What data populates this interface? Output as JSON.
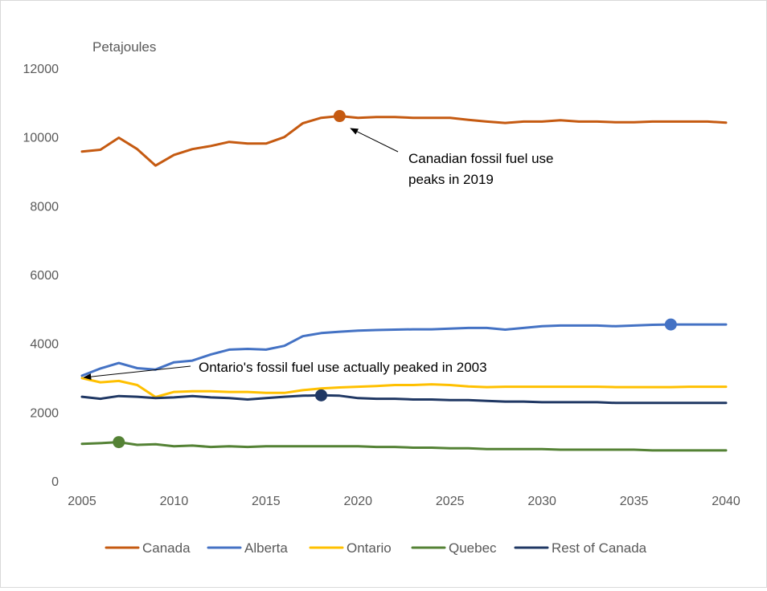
{
  "chart_data": {
    "type": "line",
    "title": "",
    "ylabel": "Petajoules",
    "xlabel": "",
    "ylim": [
      0,
      12000
    ],
    "xlim": [
      2005,
      2040
    ],
    "y_ticks": [
      0,
      2000,
      4000,
      6000,
      8000,
      10000,
      12000
    ],
    "x_ticks": [
      2005,
      2010,
      2015,
      2020,
      2025,
      2030,
      2035,
      2040
    ],
    "grid": false,
    "legend_position": "bottom",
    "x": [
      2005,
      2006,
      2007,
      2008,
      2009,
      2010,
      2011,
      2012,
      2013,
      2014,
      2015,
      2016,
      2017,
      2018,
      2019,
      2020,
      2021,
      2022,
      2023,
      2024,
      2025,
      2026,
      2027,
      2028,
      2029,
      2030,
      2031,
      2032,
      2033,
      2034,
      2035,
      2036,
      2037,
      2038,
      2039,
      2040
    ],
    "series": [
      {
        "name": "Canada",
        "color": "#C55A11",
        "values": [
          9580,
          9630,
          9980,
          9650,
          9170,
          9480,
          9650,
          9740,
          9860,
          9810,
          9810,
          10000,
          10400,
          10560,
          10610,
          10560,
          10580,
          10580,
          10560,
          10560,
          10560,
          10500,
          10450,
          10410,
          10450,
          10450,
          10490,
          10450,
          10450,
          10430,
          10430,
          10450,
          10450,
          10450,
          10450,
          10420
        ]
      },
      {
        "name": "Alberta",
        "color": "#4472C4",
        "values": [
          3060,
          3270,
          3430,
          3280,
          3240,
          3450,
          3500,
          3680,
          3820,
          3840,
          3820,
          3930,
          4210,
          4300,
          4340,
          4370,
          4390,
          4400,
          4410,
          4410,
          4430,
          4450,
          4450,
          4400,
          4450,
          4500,
          4520,
          4520,
          4520,
          4500,
          4520,
          4540,
          4550,
          4550,
          4550,
          4550
        ]
      },
      {
        "name": "Ontario",
        "color": "#FFC000",
        "values": [
          2990,
          2870,
          2910,
          2790,
          2440,
          2590,
          2610,
          2610,
          2590,
          2590,
          2560,
          2560,
          2640,
          2690,
          2720,
          2740,
          2760,
          2790,
          2790,
          2810,
          2790,
          2750,
          2730,
          2740,
          2740,
          2740,
          2740,
          2740,
          2740,
          2730,
          2730,
          2730,
          2730,
          2740,
          2740,
          2740
        ]
      },
      {
        "name": "Quebec",
        "color": "#548235",
        "values": [
          1080,
          1100,
          1130,
          1050,
          1070,
          1010,
          1030,
          990,
          1010,
          990,
          1010,
          1010,
          1010,
          1010,
          1010,
          1010,
          990,
          990,
          970,
          970,
          950,
          950,
          930,
          930,
          930,
          930,
          910,
          910,
          910,
          910,
          910,
          890,
          890,
          890,
          890,
          890
        ]
      },
      {
        "name": "Rest of Canada",
        "color": "#203864",
        "values": [
          2450,
          2390,
          2470,
          2450,
          2410,
          2430,
          2470,
          2430,
          2410,
          2370,
          2410,
          2450,
          2480,
          2490,
          2480,
          2410,
          2390,
          2390,
          2370,
          2370,
          2350,
          2350,
          2330,
          2310,
          2310,
          2290,
          2290,
          2290,
          2290,
          2270,
          2270,
          2270,
          2270,
          2270,
          2270,
          2270
        ]
      }
    ],
    "markers": [
      {
        "series": "Canada",
        "x": 2019,
        "y": 10610,
        "color": "#C55A11"
      },
      {
        "series": "Alberta",
        "x": 2037,
        "y": 4550,
        "color": "#4472C4"
      },
      {
        "series": "Quebec",
        "x": 2007,
        "y": 1130,
        "color": "#548235"
      },
      {
        "series": "Rest of Canada",
        "x": 2018,
        "y": 2490,
        "color": "#203864"
      }
    ],
    "annotations": [
      {
        "lines": [
          "Canadian fossil fuel use",
          "peaks in 2019"
        ],
        "arrow_to": [
          2019.6,
          10250
        ]
      },
      {
        "lines": [
          "Ontario's fossil fuel use actually peaked in 2003"
        ],
        "arrow_to": [
          2005.1,
          3010
        ]
      }
    ]
  }
}
